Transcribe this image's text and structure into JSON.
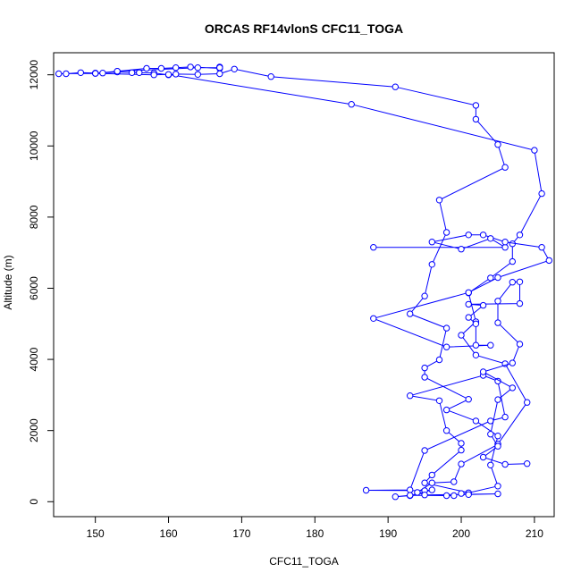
{
  "chart_data": {
    "type": "line",
    "title": "ORCAS RF14vlonS CFC11_TOGA",
    "xlabel": "CFC11_TOGA",
    "ylabel": "Altitude (m)",
    "xlim": [
      144.3,
      212.7
    ],
    "ylim": [
      -420,
      12620
    ],
    "xticks": [
      150,
      160,
      170,
      180,
      190,
      200,
      210
    ],
    "yticks": [
      0,
      2000,
      4000,
      6000,
      8000,
      10000,
      12000
    ],
    "grid": false,
    "legend": "none",
    "markers": "open-circle",
    "colors": {
      "series": "#0000ff",
      "axis": "#000000"
    },
    "series": [
      {
        "values": [
          [
            167,
            12220
          ],
          [
            167,
            12180
          ],
          [
            163,
            12220
          ],
          [
            161,
            12200
          ],
          [
            159,
            12180
          ],
          [
            157,
            12180
          ],
          [
            153,
            12100
          ],
          [
            151,
            12050
          ],
          [
            150,
            12050
          ],
          [
            148,
            12060
          ],
          [
            146,
            12030
          ],
          [
            145,
            12030
          ],
          [
            150,
            12040
          ],
          [
            153,
            12080
          ],
          [
            155,
            12060
          ],
          [
            156,
            12060
          ],
          [
            158,
            12050
          ],
          [
            160,
            12000
          ],
          [
            161,
            12020
          ],
          [
            164,
            12010
          ],
          [
            167,
            12030
          ],
          [
            169,
            12160
          ],
          [
            174,
            11950
          ],
          [
            191,
            11660
          ],
          [
            202,
            11140
          ],
          [
            202,
            10750
          ],
          [
            205,
            10040
          ],
          [
            206,
            9400
          ],
          [
            197,
            8480
          ],
          [
            198,
            7570
          ],
          [
            196,
            6670
          ],
          [
            195,
            5780
          ],
          [
            193,
            5280
          ],
          [
            198,
            4880
          ],
          [
            197,
            3990
          ],
          [
            195,
            3760
          ],
          [
            195,
            3500
          ],
          [
            201,
            2880
          ],
          [
            198,
            2580
          ],
          [
            202,
            2270
          ],
          [
            205,
            1850
          ],
          [
            204,
            1030
          ],
          [
            205,
            440
          ],
          [
            201,
            250
          ],
          [
            195,
            530
          ],
          [
            196,
            750
          ],
          [
            200,
            1450
          ],
          [
            200,
            1640
          ],
          [
            198,
            2000
          ],
          [
            197,
            2840
          ],
          [
            193,
            2980
          ],
          [
            203,
            3550
          ],
          [
            205,
            3390
          ],
          [
            206,
            2380
          ],
          [
            204,
            2270
          ],
          [
            195,
            1440
          ],
          [
            193,
            330
          ],
          [
            187,
            320
          ],
          [
            195,
            310
          ],
          [
            196,
            330
          ],
          [
            193,
            170
          ],
          [
            191,
            140
          ],
          [
            193,
            180
          ],
          [
            198,
            170
          ],
          [
            199,
            170
          ],
          [
            200,
            230
          ],
          [
            201,
            200
          ],
          [
            205,
            220
          ],
          [
            195,
            190
          ],
          [
            194,
            260
          ],
          [
            196,
            530
          ],
          [
            199,
            560
          ],
          [
            200,
            1060
          ],
          [
            205,
            1610
          ],
          [
            205,
            1620
          ],
          [
            209,
            2790
          ],
          [
            206,
            3880
          ],
          [
            202,
            4120
          ],
          [
            200,
            4680
          ],
          [
            202,
            5060
          ],
          [
            201,
            5870
          ],
          [
            204,
            6290
          ],
          [
            207,
            6750
          ],
          [
            207,
            7250
          ],
          [
            208,
            7500
          ],
          [
            211,
            8660
          ],
          [
            210,
            9880
          ],
          [
            185,
            11170
          ],
          [
            160,
            12010
          ],
          [
            158,
            12000
          ],
          [
            150,
            12040
          ],
          [
            153,
            12100
          ],
          [
            164,
            12200
          ],
          [
            167,
            12200
          ]
        ]
      },
      {
        "values": [
          [
            188,
            7150
          ],
          [
            206,
            7150
          ],
          [
            204,
            7400
          ],
          [
            200,
            7100
          ],
          [
            196,
            7300
          ],
          [
            201,
            7500
          ],
          [
            203,
            7500
          ],
          [
            206,
            7300
          ],
          [
            211,
            7150
          ],
          [
            212,
            6780
          ],
          [
            205,
            6300
          ],
          [
            201,
            5880
          ],
          [
            188,
            5150
          ],
          [
            198,
            4350
          ],
          [
            204,
            4400
          ],
          [
            202,
            4400
          ],
          [
            202,
            5000
          ],
          [
            201,
            5180
          ],
          [
            203,
            5520
          ],
          [
            201,
            5550
          ],
          [
            208,
            5570
          ],
          [
            208,
            6180
          ],
          [
            207,
            6170
          ],
          [
            205,
            5640
          ],
          [
            205,
            5030
          ],
          [
            208,
            4430
          ],
          [
            207,
            3900
          ],
          [
            203,
            3650
          ],
          [
            207,
            3200
          ],
          [
            205,
            2870
          ],
          [
            204,
            1900
          ],
          [
            205,
            1560
          ],
          [
            203,
            1250
          ],
          [
            206,
            1050
          ],
          [
            209,
            1070
          ]
        ]
      }
    ]
  }
}
